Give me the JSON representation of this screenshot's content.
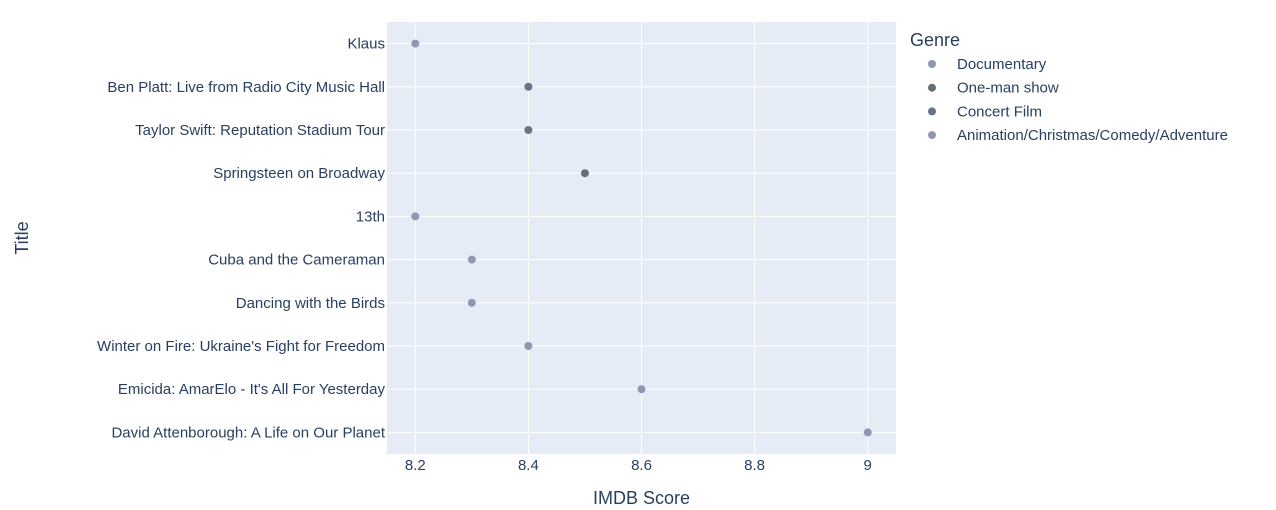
{
  "chart_data": {
    "type": "scatter",
    "xlabel": "IMDB Score",
    "ylabel": "Title",
    "xlim": [
      8.15,
      9.05
    ],
    "x_ticks": [
      8.2,
      8.4,
      8.6,
      8.8,
      9
    ],
    "x_tick_labels": [
      "8.2",
      "8.4",
      "8.6",
      "8.8",
      "9"
    ],
    "categories": [
      "Klaus",
      "Ben Platt: Live from Radio City Music Hall",
      "Taylor Swift: Reputation Stadium Tour",
      "Springsteen on Broadway",
      "13th",
      "Cuba and the Cameraman",
      "Dancing with the Birds",
      "Winter on Fire: Ukraine's Fight for Freedom",
      "Emicida: AmarElo - It's All For Yesterday",
      "David Attenborough: A Life on Our Planet"
    ],
    "grid": true,
    "legend": {
      "title": "Genre",
      "placement": "top-right"
    },
    "series": [
      {
        "name": "Documentary",
        "color": "#8f98b0",
        "points": [
          {
            "y": "13th",
            "x": 8.2
          },
          {
            "y": "Cuba and the Cameraman",
            "x": 8.3
          },
          {
            "y": "Dancing with the Birds",
            "x": 8.3
          },
          {
            "y": "Winter on Fire: Ukraine's Fight for Freedom",
            "x": 8.4
          },
          {
            "y": "Emicida: AmarElo - It's All For Yesterday",
            "x": 8.6
          },
          {
            "y": "David Attenborough: A Life on Our Planet",
            "x": 9
          }
        ]
      },
      {
        "name": "One-man show",
        "color": "#666e78",
        "points": [
          {
            "y": "Springsteen on Broadway",
            "x": 8.5
          }
        ]
      },
      {
        "name": "Concert Film",
        "color": "#6a7482",
        "points": [
          {
            "y": "Ben Platt: Live from Radio City Music Hall",
            "x": 8.4
          },
          {
            "y": "Taylor Swift: Reputation Stadium Tour",
            "x": 8.4
          }
        ]
      },
      {
        "name": "Animation/Christmas/Comedy/Adventure",
        "color": "#8f98b0",
        "points": [
          {
            "y": "Klaus",
            "x": 8.2
          }
        ]
      }
    ]
  }
}
